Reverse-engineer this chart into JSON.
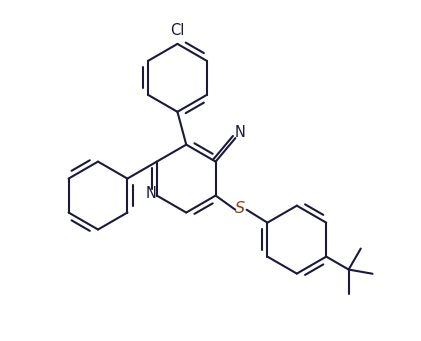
{
  "bg_color": "#ffffff",
  "line_color": "#1a1a3a",
  "s_color": "#8B4513",
  "line_width": 1.5,
  "font_size": 10.5,
  "figsize": [
    4.21,
    3.41
  ],
  "dpi": 100,
  "xlim": [
    -2.1,
    2.5
  ],
  "ylim": [
    -2.2,
    2.0
  ]
}
